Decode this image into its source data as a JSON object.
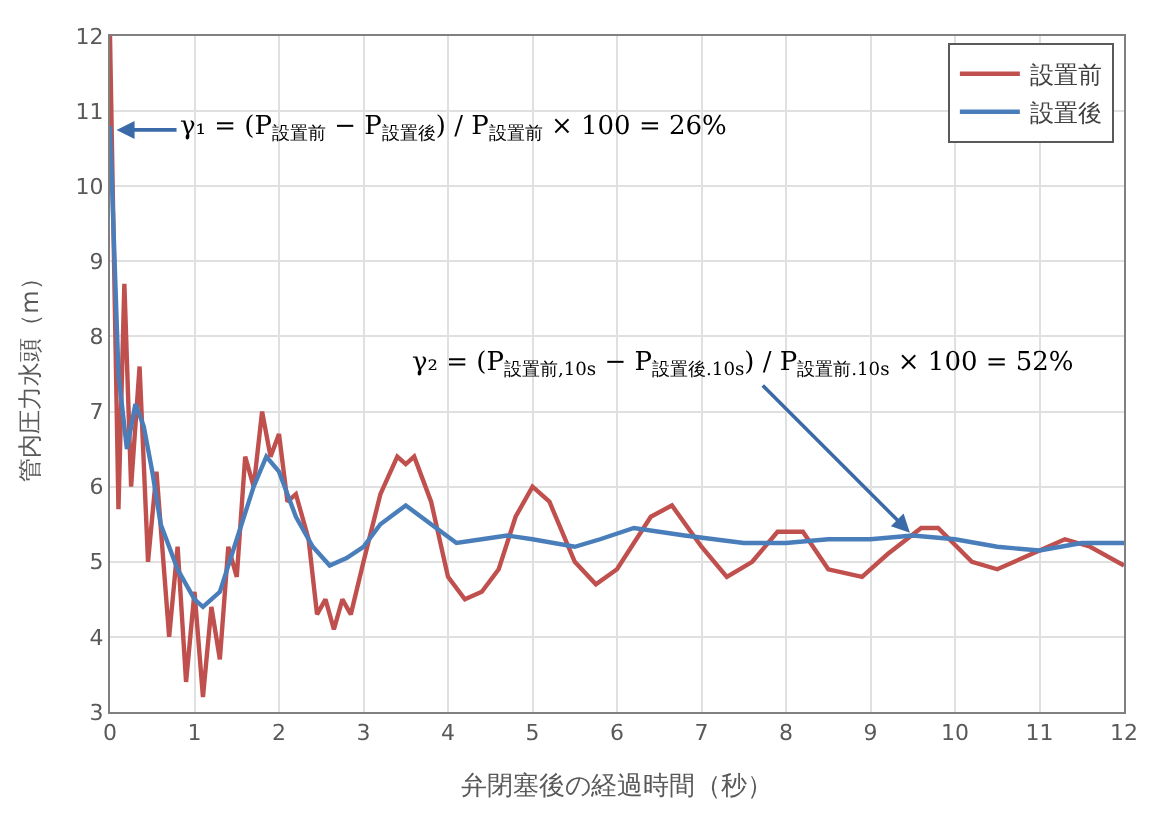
{
  "chart_data": {
    "type": "line",
    "xlabel": "弁閉塞後の経過時間（秒）",
    "ylabel": "管内圧力水頭（m）",
    "xlim": [
      0,
      12
    ],
    "xticks": [
      0,
      1,
      2,
      3,
      4,
      5,
      6,
      7,
      8,
      9,
      10,
      11,
      12
    ],
    "ylim": [
      3,
      12
    ],
    "yticks": [
      3,
      4,
      5,
      6,
      7,
      8,
      9,
      10,
      11,
      12
    ],
    "grid": true,
    "legend": "top right",
    "marker": "none",
    "line_style": "solid",
    "series": [
      {
        "name": "設置前",
        "color": "#c0504d",
        "x": [
          0,
          0.1,
          0.17,
          0.25,
          0.35,
          0.45,
          0.55,
          0.7,
          0.8,
          0.9,
          1.0,
          1.1,
          1.2,
          1.3,
          1.4,
          1.5,
          1.6,
          1.7,
          1.8,
          1.9,
          2.0,
          2.1,
          2.2,
          2.35,
          2.45,
          2.55,
          2.65,
          2.75,
          2.85,
          3.0,
          3.2,
          3.4,
          3.5,
          3.6,
          3.8,
          4.0,
          4.2,
          4.4,
          4.6,
          4.8,
          5.0,
          5.2,
          5.5,
          5.75,
          6.0,
          6.4,
          6.65,
          7.0,
          7.3,
          7.6,
          7.9,
          8.2,
          8.5,
          8.9,
          9.2,
          9.6,
          9.8,
          10.2,
          10.5,
          10.9,
          11.3,
          11.6,
          12.0
        ],
        "values": [
          12.0,
          5.7,
          8.7,
          6.0,
          7.6,
          5.0,
          6.2,
          4.0,
          5.2,
          3.4,
          4.6,
          3.2,
          4.4,
          3.7,
          5.2,
          4.8,
          6.4,
          6.0,
          7.0,
          6.4,
          6.7,
          5.8,
          5.9,
          5.3,
          4.3,
          4.5,
          4.1,
          4.5,
          4.3,
          5.0,
          5.9,
          6.4,
          6.3,
          6.4,
          5.8,
          4.8,
          4.5,
          4.6,
          4.9,
          5.6,
          6.0,
          5.8,
          5.0,
          4.7,
          4.9,
          5.6,
          5.75,
          5.2,
          4.8,
          5.0,
          5.4,
          5.4,
          4.9,
          4.8,
          5.1,
          5.45,
          5.45,
          5.0,
          4.9,
          5.1,
          5.3,
          5.2,
          4.95
        ]
      },
      {
        "name": "設置後",
        "color": "#4a7ebb",
        "x": [
          0,
          0.1,
          0.2,
          0.3,
          0.4,
          0.5,
          0.6,
          0.8,
          1.0,
          1.1,
          1.3,
          1.5,
          1.7,
          1.85,
          2.0,
          2.2,
          2.4,
          2.6,
          2.8,
          3.0,
          3.2,
          3.5,
          3.8,
          4.1,
          4.4,
          4.7,
          5.0,
          5.5,
          5.8,
          6.2,
          6.8,
          7.5,
          8.0,
          8.5,
          9.0,
          9.5,
          10.0,
          10.5,
          11.0,
          11.5,
          12.0
        ],
        "values": [
          10.8,
          7.5,
          6.5,
          7.1,
          6.8,
          6.2,
          5.5,
          4.9,
          4.5,
          4.4,
          4.6,
          5.3,
          6.0,
          6.4,
          6.2,
          5.6,
          5.2,
          4.95,
          5.05,
          5.2,
          5.5,
          5.75,
          5.5,
          5.25,
          5.3,
          5.35,
          5.3,
          5.2,
          5.3,
          5.45,
          5.35,
          5.25,
          5.25,
          5.3,
          5.3,
          5.35,
          5.3,
          5.2,
          5.15,
          5.25,
          5.25
        ]
      }
    ],
    "annotations": [
      {
        "text": "γ₁ = (P$_{設置前}$ − P$_{設置後}$) / P$_{設置前}$ × 100 = 26%",
        "x": 0.03,
        "y": 10.75
      },
      {
        "text": "γ₂ = (P$_{設置前,10s}$ − P$_{設置後.10s}$) / P$_{設置前.10s}$ × 100 = 52%",
        "x": 9.5,
        "y": 5.35
      }
    ]
  }
}
